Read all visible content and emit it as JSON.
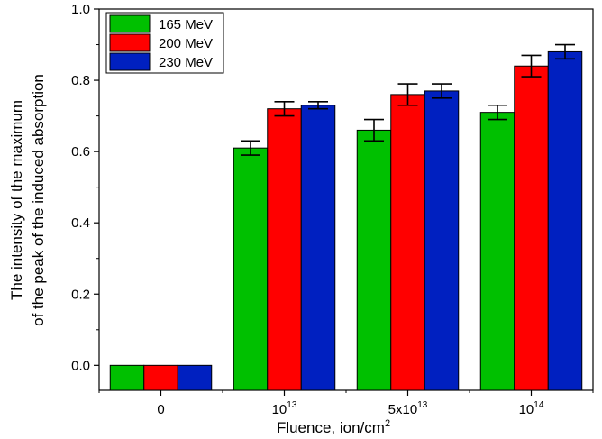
{
  "chart_data": {
    "type": "bar",
    "categories": [
      {
        "base": "0",
        "exp": ""
      },
      {
        "base": "10",
        "exp": "13"
      },
      {
        "base": "5x10",
        "exp": "13"
      },
      {
        "base": "10",
        "exp": "14"
      }
    ],
    "series": [
      {
        "name": "165 MeV",
        "color": "#00c000",
        "values": [
          0.0,
          0.61,
          0.66,
          0.71
        ],
        "errors": [
          0.0,
          0.02,
          0.03,
          0.02
        ]
      },
      {
        "name": "200 MeV",
        "color": "#ff0000",
        "values": [
          0.0,
          0.72,
          0.76,
          0.84
        ],
        "errors": [
          0.0,
          0.02,
          0.03,
          0.03
        ]
      },
      {
        "name": "230 MeV",
        "color": "#0020c0",
        "values": [
          0.0,
          0.73,
          0.77,
          0.88
        ],
        "errors": [
          0.0,
          0.01,
          0.02,
          0.02
        ]
      }
    ],
    "xlabel": {
      "text": "Fluence, ion/cm",
      "sup": "2"
    },
    "ylabel": [
      "The intensity of the maximum",
      "of the peak of the induced absorption"
    ],
    "ylim": [
      -0.07,
      1.0
    ],
    "yticks": [
      "0.0",
      "0.2",
      "0.4",
      "0.6",
      "0.8",
      "1.0"
    ],
    "legend_position": "top-left",
    "grid": false
  }
}
